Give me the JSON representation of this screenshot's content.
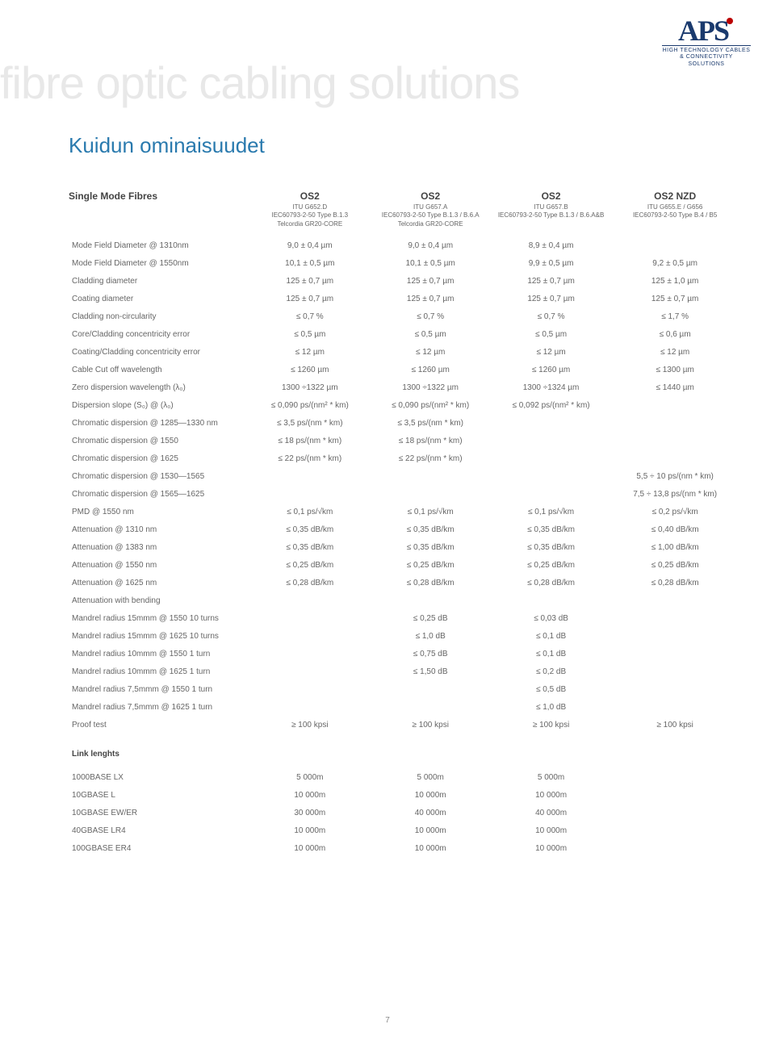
{
  "logo": {
    "main": "APS",
    "line1": "HIGH TECHNOLOGY CABLES",
    "line2": "& CONNECTIVITY SOLUTIONS"
  },
  "banner": "fibre optic cabling solutions",
  "section_title": "Kuidun ominaisuudet",
  "page_num": "7",
  "table_header": {
    "title": "Single Mode Fibres",
    "cols": [
      {
        "main": "OS2",
        "sub": [
          "ITU G652.D",
          "IEC60793-2-50 Type B.1.3",
          "Telcordia GR20-CORE"
        ]
      },
      {
        "main": "OS2",
        "sub": [
          "ITU G657.A",
          "IEC60793-2-50 Type B.1.3 / B.6.A",
          "Telcordia GR20-CORE"
        ]
      },
      {
        "main": "OS2",
        "sub": [
          "ITU G657.B",
          "IEC60793-2-50 Type B.1.3 / B.6.A&B"
        ]
      },
      {
        "main": "OS2 NZD",
        "sub": [
          "ITU G655.E / G656",
          "IEC60793-2-50 Type B.4 / B5"
        ]
      }
    ]
  },
  "rows": [
    [
      "Mode Field Diameter @ 1310nm",
      "9,0 ± 0,4 µm",
      "9,0 ± 0,4 µm",
      "8,9 ± 0,4 µm",
      ""
    ],
    [
      "Mode Field Diameter @ 1550nm",
      "10,1 ± 0,5 µm",
      "10,1 ± 0,5 µm",
      "9,9 ± 0,5 µm",
      "9,2 ± 0,5 µm"
    ],
    [
      "Cladding diameter",
      "125  ± 0,7 µm",
      "125  ± 0,7 µm",
      "125  ± 0,7 µm",
      "125  ± 1,0 µm"
    ],
    [
      "Coating diameter",
      "125  ± 0,7 µm",
      "125  ± 0,7 µm",
      "125  ± 0,7 µm",
      "125  ± 0,7 µm"
    ],
    [
      "Cladding non-circularity",
      "≤ 0,7 %",
      "≤ 0,7 %",
      "≤ 0,7 %",
      "≤ 1,7 %"
    ],
    [
      "Core/Cladding concentricity error",
      "≤ 0,5 µm",
      "≤ 0,5 µm",
      "≤ 0,5 µm",
      "≤ 0,6 µm"
    ],
    [
      "Coating/Cladding concentricity error",
      "≤ 12 µm",
      "≤ 12 µm",
      "≤ 12 µm",
      "≤ 12 µm"
    ],
    [
      "Cable Cut off wavelength",
      "≤ 1260 µm",
      "≤ 1260 µm",
      "≤ 1260 µm",
      "≤ 1300 µm"
    ],
    [
      "Zero dispersion wavelength (λ₀)",
      "1300 ÷1322 µm",
      "1300 ÷1322 µm",
      "1300 ÷1324 µm",
      "≤ 1440 µm"
    ],
    [
      "Dispersion slope (S₀) @ (λ₀)",
      "≤ 0,090 ps/(nm² * km)",
      "≤ 0,090 ps/(nm² * km)",
      "≤ 0,092 ps/(nm² * km)",
      ""
    ],
    [
      "Chromatic dispersion @ 1285—1330 nm",
      "≤ 3,5 ps/(nm * km)",
      "≤ 3,5 ps/(nm * km)",
      "",
      ""
    ],
    [
      "Chromatic dispersion @ 1550",
      "≤ 18 ps/(nm * km)",
      "≤ 18 ps/(nm * km)",
      "",
      ""
    ],
    [
      "Chromatic dispersion @ 1625",
      "≤ 22 ps/(nm * km)",
      "≤ 22 ps/(nm * km)",
      "",
      ""
    ],
    [
      "Chromatic dispersion @ 1530—1565",
      "",
      "",
      "",
      "5,5 ÷ 10 ps/(nm * km)"
    ],
    [
      "Chromatic dispersion @ 1565—1625",
      "",
      "",
      "",
      "7,5 ÷ 13,8 ps/(nm * km)"
    ],
    [
      "PMD @ 1550 nm",
      "≤ 0,1 ps/√km",
      "≤ 0,1 ps/√km",
      "≤ 0,1 ps/√km",
      "≤ 0,2 ps/√km"
    ],
    [
      "Attenuation @ 1310 nm",
      "≤ 0,35 dB/km",
      "≤ 0,35 dB/km",
      "≤ 0,35 dB/km",
      "≤ 0,40 dB/km"
    ],
    [
      "Attenuation @ 1383 nm",
      "≤ 0,35 dB/km",
      "≤ 0,35 dB/km",
      "≤ 0,35 dB/km",
      "≤ 1,00 dB/km"
    ],
    [
      "Attenuation @ 1550 nm",
      "≤ 0,25 dB/km",
      "≤ 0,25 dB/km",
      "≤ 0,25 dB/km",
      "≤ 0,25 dB/km"
    ],
    [
      "Attenuation @ 1625 nm",
      "≤ 0,28 dB/km",
      "≤ 0,28 dB/km",
      "≤ 0,28 dB/km",
      "≤ 0,28 dB/km"
    ],
    [
      "Attenuation with bending",
      "",
      "",
      "",
      ""
    ],
    [
      "Mandrel radius 15mmm @ 1550 10 turns",
      "",
      "≤ 0,25 dB",
      "≤ 0,03 dB",
      ""
    ],
    [
      "Mandrel radius 15mmm @ 1625 10 turns",
      "",
      "≤ 1,0 dB",
      "≤ 0,1 dB",
      ""
    ],
    [
      "Mandrel radius 10mmm @ 1550 1 turn",
      "",
      "≤ 0,75 dB",
      "≤ 0,1 dB",
      ""
    ],
    [
      "Mandrel radius 10mmm @ 1625 1 turn",
      "",
      "≤ 1,50 dB",
      "≤ 0,2 dB",
      ""
    ],
    [
      "Mandrel radius 7,5mmm @ 1550 1 turn",
      "",
      "",
      "≤ 0,5 dB",
      ""
    ],
    [
      "Mandrel radius 7,5mmm @ 1625 1 turn",
      "",
      "",
      "≤ 1,0 dB",
      ""
    ],
    [
      "Proof test",
      "≥ 100 kpsi",
      "≥ 100 kpsi",
      "≥ 100 kpsi",
      "≥ 100 kpsi"
    ]
  ],
  "link_head": "Link lenghts",
  "link_rows": [
    [
      "1000BASE LX",
      "5 000m",
      "5 000m",
      "5 000m",
      ""
    ],
    [
      "10GBASE L",
      "10 000m",
      "10 000m",
      "10 000m",
      ""
    ],
    [
      "10GBASE EW/ER",
      "30 000m",
      "40 000m",
      "40 000m",
      ""
    ],
    [
      "40GBASE LR4",
      "10 000m",
      "10 000m",
      "10 000m",
      ""
    ],
    [
      "100GBASE ER4",
      "10 000m",
      "10 000m",
      "10 000m",
      ""
    ]
  ]
}
